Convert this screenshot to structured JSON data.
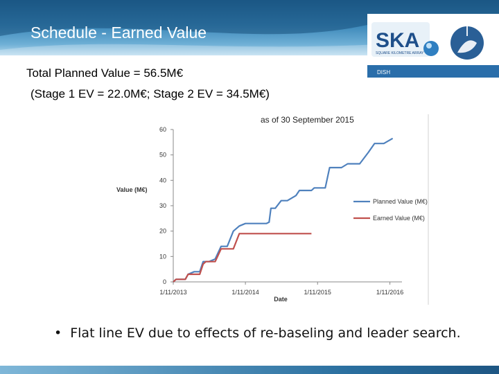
{
  "slide": {
    "title": "Schedule - Earned Value",
    "line1": "Total Planned Value = 56.5M€",
    "line2": "(Stage 1 EV = 22.0M€; Stage 2 EV = 34.5M€)",
    "bullet": "Flat line EV due to effects of re-baseling and leader search."
  },
  "logo": {
    "text": "SKA",
    "tagline": "SQUARE KILOMETRE ARRAY",
    "label": "DISH"
  },
  "colors": {
    "planned": "#4f81bd",
    "earned": "#c0504d"
  },
  "chart_data": {
    "type": "line",
    "subtitle": "as of 30 September 2015",
    "xlabel": "Date",
    "ylabel": "Value (M€)",
    "ylim": [
      0,
      60
    ],
    "yticks": [
      0,
      10,
      20,
      30,
      40,
      50,
      60
    ],
    "xticks": [
      "1/11/2013",
      "1/11/2014",
      "1/11/2015",
      "1/11/2016"
    ],
    "xlim": [
      "2013-11-01",
      "2017-01-01"
    ],
    "legend_position": "right",
    "series": [
      {
        "name": "Planned Value (M€)",
        "points": [
          [
            "2013-11-01",
            0.0
          ],
          [
            "2013-11-15",
            1.0
          ],
          [
            "2014-01-01",
            1.0
          ],
          [
            "2014-01-15",
            3.0
          ],
          [
            "2014-02-15",
            4.0
          ],
          [
            "2014-03-15",
            4.0
          ],
          [
            "2014-04-01",
            8.0
          ],
          [
            "2014-05-01",
            8.0
          ],
          [
            "2014-06-01",
            9.0
          ],
          [
            "2014-07-01",
            14.0
          ],
          [
            "2014-08-01",
            14.0
          ],
          [
            "2014-09-01",
            20.0
          ],
          [
            "2014-10-01",
            22.0
          ],
          [
            "2014-11-01",
            23.0
          ],
          [
            "2015-02-15",
            23.0
          ],
          [
            "2015-03-01",
            23.5
          ],
          [
            "2015-03-10",
            29.0
          ],
          [
            "2015-04-01",
            29.0
          ],
          [
            "2015-05-01",
            32.0
          ],
          [
            "2015-06-01",
            32.0
          ],
          [
            "2015-07-15",
            34.0
          ],
          [
            "2015-08-01",
            36.0
          ],
          [
            "2015-10-01",
            36.0
          ],
          [
            "2015-10-15",
            37.0
          ],
          [
            "2015-12-10",
            37.0
          ],
          [
            "2016-01-01",
            45.0
          ],
          [
            "2016-03-01",
            45.0
          ],
          [
            "2016-04-01",
            46.5
          ],
          [
            "2016-06-01",
            46.5
          ],
          [
            "2016-07-15",
            51.0
          ],
          [
            "2016-08-15",
            54.5
          ],
          [
            "2016-10-01",
            54.5
          ],
          [
            "2016-11-15",
            56.5
          ]
        ]
      },
      {
        "name": "Earned Value (M€)",
        "points": [
          [
            "2013-11-01",
            0.0
          ],
          [
            "2013-11-15",
            1.0
          ],
          [
            "2014-01-01",
            1.0
          ],
          [
            "2014-01-15",
            3.0
          ],
          [
            "2014-02-01",
            3.0
          ],
          [
            "2014-03-15",
            3.0
          ],
          [
            "2014-04-01",
            7.0
          ],
          [
            "2014-04-15",
            8.0
          ],
          [
            "2014-06-01",
            8.0
          ],
          [
            "2014-07-01",
            13.0
          ],
          [
            "2014-08-01",
            13.0
          ],
          [
            "2014-09-01",
            13.0
          ],
          [
            "2014-10-01",
            19.0
          ],
          [
            "2015-10-01",
            19.0
          ]
        ]
      }
    ]
  }
}
